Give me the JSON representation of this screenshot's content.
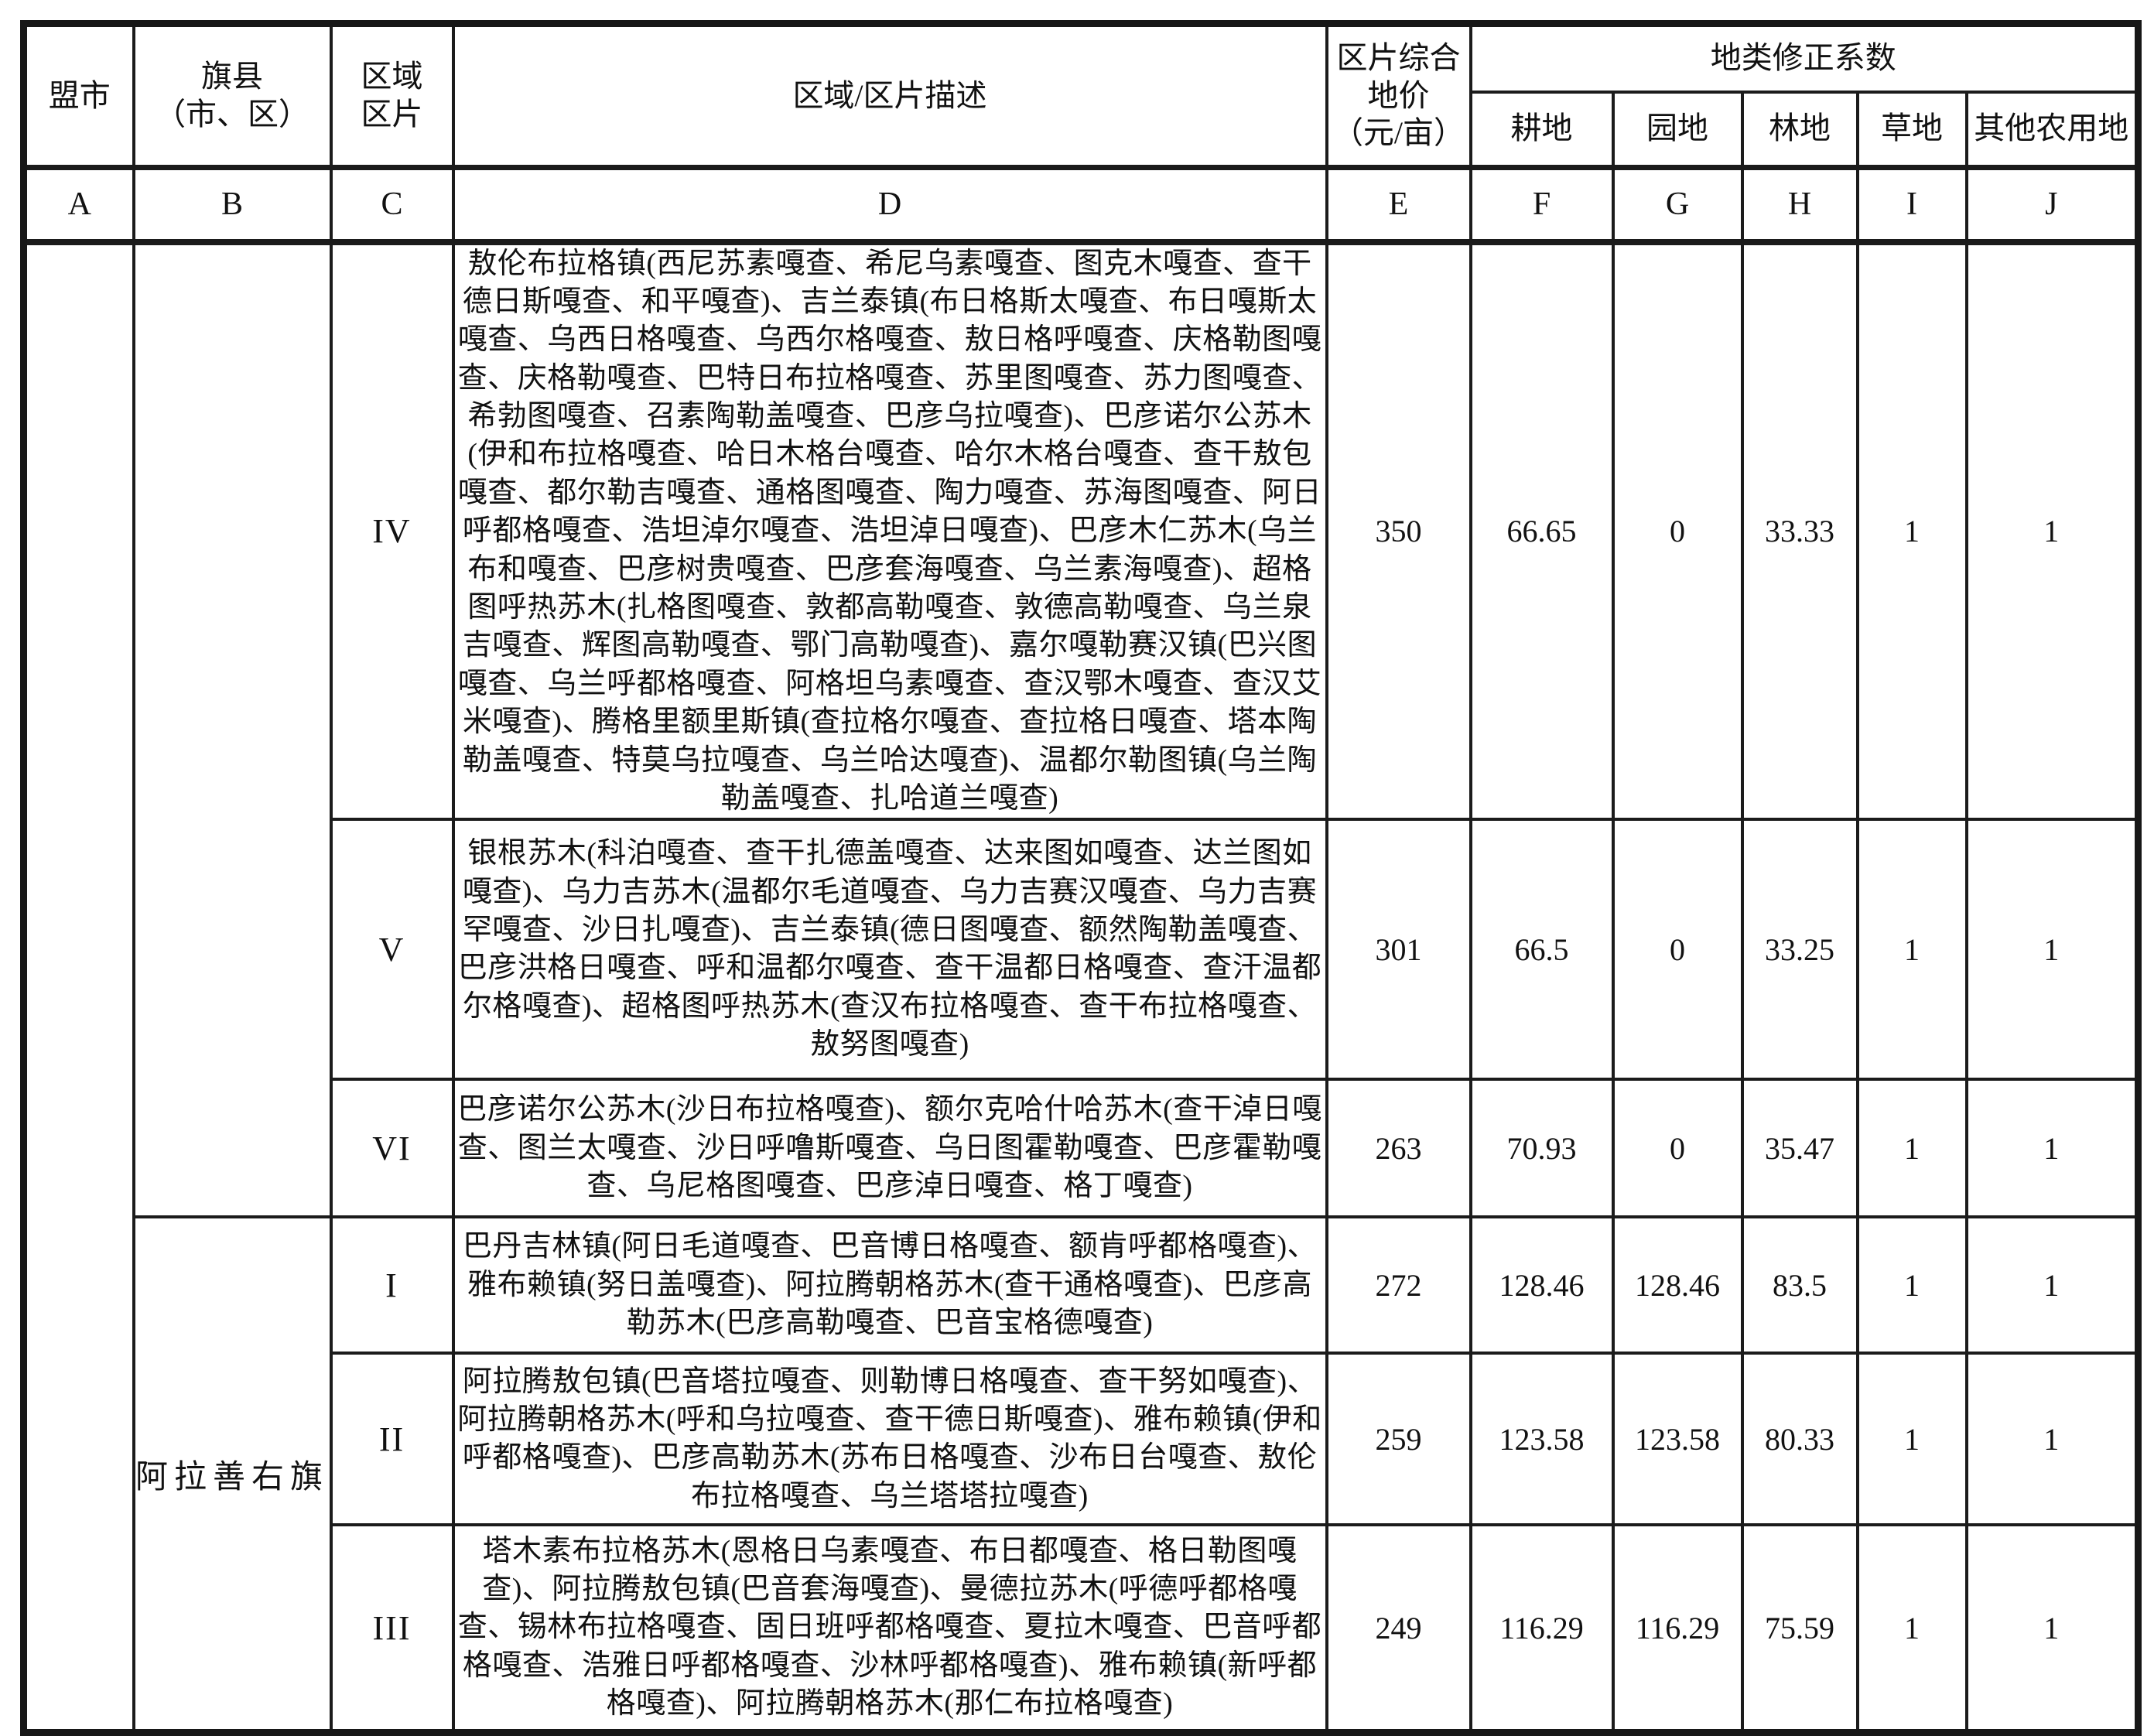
{
  "header": {
    "league_city": "盟市",
    "banner_county_line1": "旗县",
    "banner_county_line2": "（市、区）",
    "zone_line1": "区域",
    "zone_line2": "区片",
    "description": "区域/区片描述",
    "price_line1": "区片综合",
    "price_line2": "地价",
    "price_line3": "（元/亩）",
    "coef_group": "地类修正系数",
    "coef_cols": [
      "耕地",
      "园地",
      "林地",
      "草地",
      "其他农用地"
    ],
    "letters": [
      "A",
      "B",
      "C",
      "D",
      "E",
      "F",
      "G",
      "H",
      "I",
      "J"
    ]
  },
  "body": {
    "league_city_value": "",
    "county_top_value": "",
    "county_bottom_value": "阿拉善右旗",
    "rows": [
      {
        "zone": "IV",
        "desc": "敖伦布拉格镇(西尼苏素嘎查、希尼乌素嘎查、图克木嘎查、查干德日斯嘎查、和平嘎查)、吉兰泰镇(布日格斯太嘎查、布日嘎斯太嘎查、乌西日格嘎查、乌西尔格嘎查、敖日格呼嘎查、庆格勒图嘎查、庆格勒嘎查、巴特日布拉格嘎查、苏里图嘎查、苏力图嘎查、希勃图嘎查、召素陶勒盖嘎查、巴彦乌拉嘎查)、巴彦诺尔公苏木(伊和布拉格嘎查、哈日木格台嘎查、哈尔木格台嘎查、查干敖包嘎查、都尔勒吉嘎查、通格图嘎查、陶力嘎查、苏海图嘎查、阿日呼都格嘎查、浩坦淖尔嘎查、浩坦淖日嘎查)、巴彦木仁苏木(乌兰布和嘎查、巴彦树贵嘎查、巴彦套海嘎查、乌兰素海嘎查)、超格图呼热苏木(扎格图嘎查、敦都高勒嘎查、敦德高勒嘎查、乌兰泉吉嘎查、辉图高勒嘎查、鄂门高勒嘎查)、嘉尔嘎勒赛汉镇(巴兴图嘎查、乌兰呼都格嘎查、阿格坦乌素嘎查、查汉鄂木嘎查、查汉艾米嘎查)、腾格里额里斯镇(查拉格尔嘎查、查拉格日嘎查、塔本陶勒盖嘎查、特莫乌拉嘎查、乌兰哈达嘎查)、温都尔勒图镇(乌兰陶勒盖嘎查、扎哈道兰嘎查)",
        "price": "350",
        "coef_cropland": "66.65",
        "coef_garden": "0",
        "coef_forest": "33.33",
        "coef_grass": "1",
        "coef_other": "1"
      },
      {
        "zone": "V",
        "desc": "银根苏木(科泊嘎查、查干扎德盖嘎查、达来图如嘎查、达兰图如嘎查)、乌力吉苏木(温都尔毛道嘎查、乌力吉赛汉嘎查、乌力吉赛罕嘎查、沙日扎嘎查)、吉兰泰镇(德日图嘎查、额然陶勒盖嘎查、巴彦洪格日嘎查、呼和温都尔嘎查、查干温都日格嘎查、查汗温都尔格嘎查)、超格图呼热苏木(查汉布拉格嘎查、查干布拉格嘎查、敖努图嘎查)",
        "price": "301",
        "coef_cropland": "66.5",
        "coef_garden": "0",
        "coef_forest": "33.25",
        "coef_grass": "1",
        "coef_other": "1"
      },
      {
        "zone": "VI",
        "desc": "巴彦诺尔公苏木(沙日布拉格嘎查)、额尔克哈什哈苏木(查干淖日嘎查、图兰太嘎查、沙日呼噜斯嘎查、乌日图霍勒嘎查、巴彦霍勒嘎查、乌尼格图嘎查、巴彦淖日嘎查、格丁嘎查)",
        "price": "263",
        "coef_cropland": "70.93",
        "coef_garden": "0",
        "coef_forest": "35.47",
        "coef_grass": "1",
        "coef_other": "1"
      },
      {
        "zone": "I",
        "desc": "巴丹吉林镇(阿日毛道嘎查、巴音博日格嘎查、额肯呼都格嘎查)、雅布赖镇(努日盖嘎查)、阿拉腾朝格苏木(查干通格嘎查)、巴彦高勒苏木(巴彦高勒嘎查、巴音宝格德嘎查)",
        "price": "272",
        "coef_cropland": "128.46",
        "coef_garden": "128.46",
        "coef_forest": "83.5",
        "coef_grass": "1",
        "coef_other": "1"
      },
      {
        "zone": "II",
        "desc": "阿拉腾敖包镇(巴音塔拉嘎查、则勒博日格嘎查、查干努如嘎查)、阿拉腾朝格苏木(呼和乌拉嘎查、查干德日斯嘎查)、雅布赖镇(伊和呼都格嘎查)、巴彦高勒苏木(苏布日格嘎查、沙布日台嘎查、敖伦布拉格嘎查、乌兰塔塔拉嘎查)",
        "price": "259",
        "coef_cropland": "123.58",
        "coef_garden": "123.58",
        "coef_forest": "80.33",
        "coef_grass": "1",
        "coef_other": "1"
      },
      {
        "zone": "III",
        "desc": "塔木素布拉格苏木(恩格日乌素嘎查、布日都嘎查、格日勒图嘎查)、阿拉腾敖包镇(巴音套海嘎查)、曼德拉苏木(呼德呼都格嘎查、锡林布拉格嘎查、固日班呼都格嘎查、夏拉木嘎查、巴音呼都格嘎查、浩雅日呼都格嘎查、沙林呼都格嘎查)、雅布赖镇(新呼都格嘎查)、阿拉腾朝格苏木(那仁布拉格嘎查)",
        "price": "249",
        "coef_cropland": "116.29",
        "coef_garden": "116.29",
        "coef_forest": "75.59",
        "coef_grass": "1",
        "coef_other": "1"
      }
    ]
  }
}
